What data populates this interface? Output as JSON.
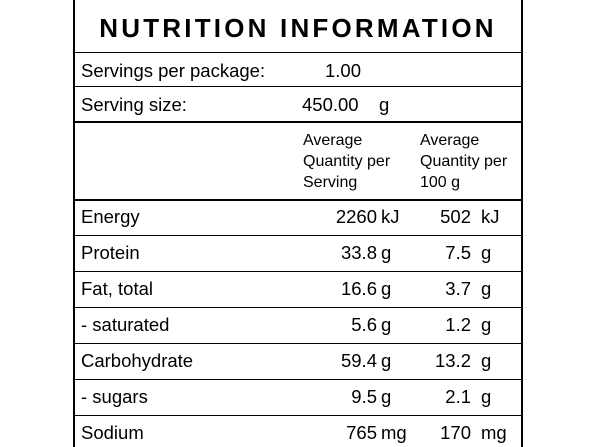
{
  "title": "NUTRITION INFORMATION",
  "servings": {
    "label": "Servings per package:",
    "value": "1.00"
  },
  "serving_size": {
    "label": "Serving size:",
    "value": "450.00",
    "unit": "g"
  },
  "headers": {
    "per_serving": [
      "Average",
      "Quantity per",
      "Serving"
    ],
    "per_100g": [
      "Average",
      "Quantity per",
      "100 g"
    ]
  },
  "rows": [
    {
      "name": "Energy",
      "serving": "2260",
      "serving_unit": "kJ",
      "per100": "502",
      "per100_unit": "kJ"
    },
    {
      "name": "Protein",
      "serving": "33.8",
      "serving_unit": "g",
      "per100": "7.5",
      "per100_unit": "g"
    },
    {
      "name": "Fat, total",
      "serving": "16.6",
      "serving_unit": "g",
      "per100": "3.7",
      "per100_unit": "g"
    },
    {
      "name": "- saturated",
      "serving": "5.6",
      "serving_unit": "g",
      "per100": "1.2",
      "per100_unit": "g"
    },
    {
      "name": "Carbohydrate",
      "serving": "59.4",
      "serving_unit": "g",
      "per100": "13.2",
      "per100_unit": "g"
    },
    {
      "name": "- sugars",
      "serving": "9.5",
      "serving_unit": "g",
      "per100": "2.1",
      "per100_unit": "g"
    },
    {
      "name": "Sodium",
      "serving": "765",
      "serving_unit": "mg",
      "per100": "170",
      "per100_unit": "mg"
    }
  ]
}
